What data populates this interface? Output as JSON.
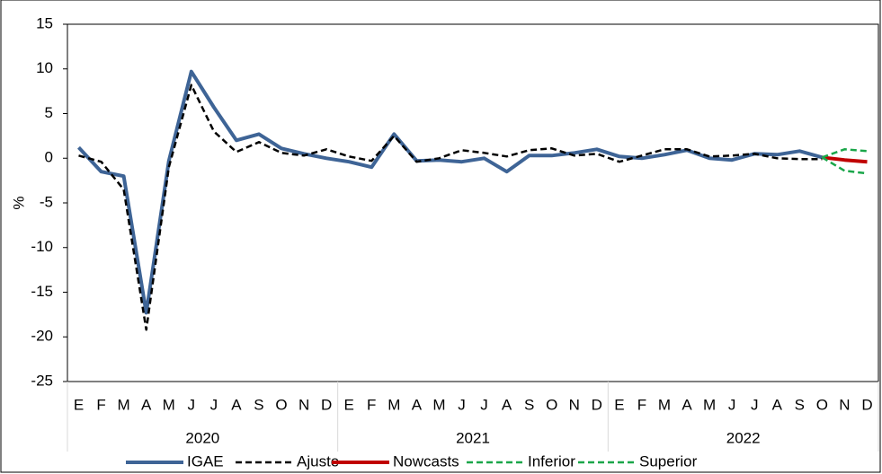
{
  "chart_data": {
    "type": "line",
    "ylabel": "%",
    "categories": [
      "E",
      "F",
      "M",
      "A",
      "M",
      "J",
      "J",
      "A",
      "S",
      "O",
      "N",
      "D",
      "E",
      "F",
      "M",
      "A",
      "M",
      "J",
      "J",
      "A",
      "S",
      "O",
      "N",
      "D",
      "E",
      "F",
      "M",
      "A",
      "M",
      "J",
      "J",
      "A",
      "S",
      "O",
      "N",
      "D"
    ],
    "years": [
      "2020",
      "2021",
      "2022"
    ],
    "ylim": [
      -25,
      15
    ],
    "yticks": [
      -25,
      -20,
      -15,
      -10,
      -5,
      0,
      5,
      10,
      15
    ],
    "series": [
      {
        "name": "IGAE",
        "color": "#3e6496",
        "dash": "solid",
        "width": 4,
        "values": [
          1.2,
          -1.5,
          -2.0,
          -17.3,
          -0.3,
          9.7,
          5.7,
          2.0,
          2.7,
          1.1,
          0.5,
          0.0,
          -0.4,
          -1.0,
          2.7,
          -0.3,
          -0.2,
          -0.4,
          0.0,
          -1.5,
          0.3,
          0.3,
          0.6,
          1.0,
          0.2,
          0.0,
          0.4,
          0.9,
          0.0,
          -0.2,
          0.5,
          0.4,
          0.8,
          0.1,
          null,
          null
        ]
      },
      {
        "name": "Ajuste",
        "color": "#000000",
        "dash": "dashed",
        "width": 2.5,
        "values": [
          0.3,
          -0.4,
          -3.5,
          -19.2,
          -1.0,
          8.2,
          3.0,
          0.7,
          1.8,
          0.6,
          0.3,
          1.0,
          0.2,
          -0.3,
          2.5,
          -0.4,
          0.0,
          0.9,
          0.6,
          0.2,
          0.9,
          1.1,
          0.3,
          0.5,
          -0.4,
          0.3,
          1.0,
          1.0,
          0.2,
          0.3,
          0.5,
          0.0,
          -0.1,
          -0.1,
          null,
          null
        ]
      },
      {
        "name": "Nowcasts",
        "color": "#c00000",
        "dash": "solid",
        "width": 4,
        "values": [
          null,
          null,
          null,
          null,
          null,
          null,
          null,
          null,
          null,
          null,
          null,
          null,
          null,
          null,
          null,
          null,
          null,
          null,
          null,
          null,
          null,
          null,
          null,
          null,
          null,
          null,
          null,
          null,
          null,
          null,
          null,
          null,
          null,
          0.1,
          -0.2,
          -0.4
        ]
      },
      {
        "name": "Inferior",
        "color": "#1aa64a",
        "dash": "dashed",
        "width": 2.5,
        "values": [
          null,
          null,
          null,
          null,
          null,
          null,
          null,
          null,
          null,
          null,
          null,
          null,
          null,
          null,
          null,
          null,
          null,
          null,
          null,
          null,
          null,
          null,
          null,
          null,
          null,
          null,
          null,
          null,
          null,
          null,
          null,
          null,
          null,
          0.1,
          -1.4,
          -1.7
        ]
      },
      {
        "name": "Superior",
        "color": "#1aa64a",
        "dash": "dashed",
        "width": 2.5,
        "values": [
          null,
          null,
          null,
          null,
          null,
          null,
          null,
          null,
          null,
          null,
          null,
          null,
          null,
          null,
          null,
          null,
          null,
          null,
          null,
          null,
          null,
          null,
          null,
          null,
          null,
          null,
          null,
          null,
          null,
          null,
          null,
          null,
          null,
          0.1,
          1.0,
          0.8
        ]
      }
    ]
  }
}
